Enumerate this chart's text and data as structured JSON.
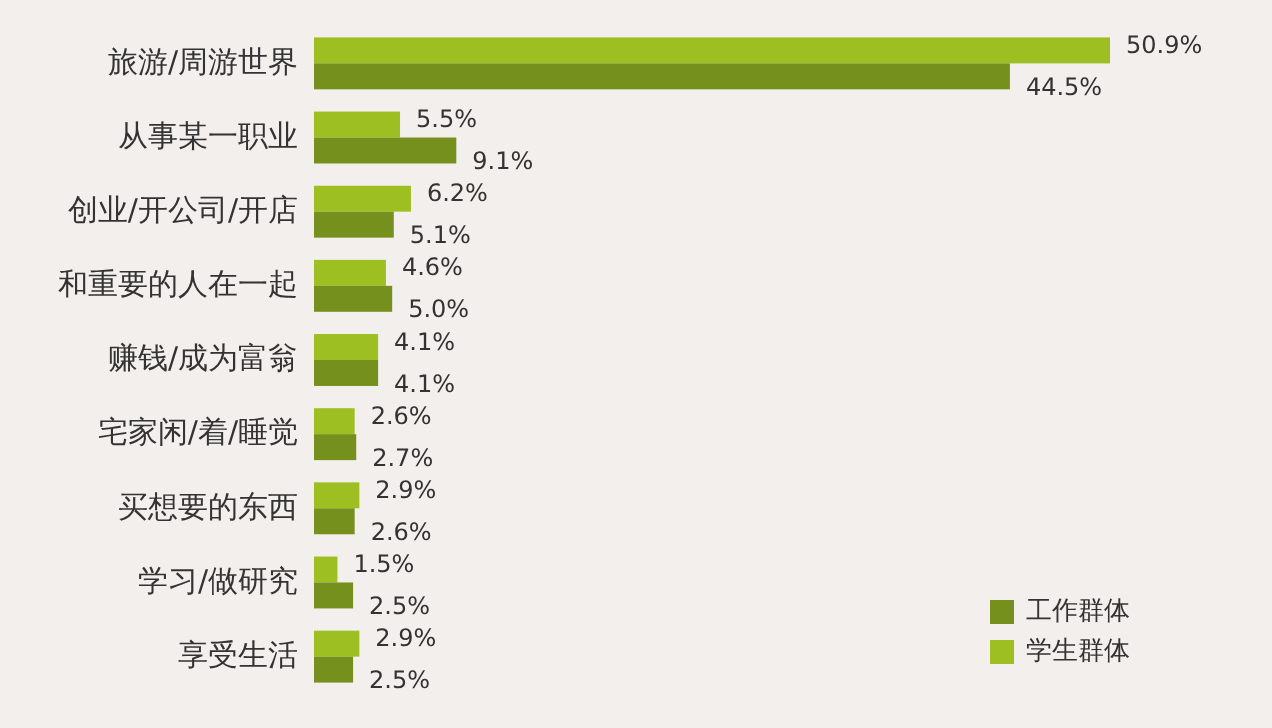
{
  "chart_data": {
    "type": "bar",
    "orientation": "horizontal",
    "legend": "bottom right",
    "categories": [
      "旅游/周游世界",
      "从事某一职业",
      "创业/开公司/开店",
      "和重要的人在一起",
      "赚钱/成为富翁",
      "宅家闲/着/睡觉",
      "买想要的东西",
      "学习/做研究",
      "享受生活"
    ],
    "series": [
      {
        "name": "学生群体",
        "color": "#9dbf22",
        "values": [
          50.9,
          5.5,
          6.2,
          4.6,
          4.1,
          2.6,
          2.9,
          1.5,
          2.9
        ],
        "value_labels": [
          "50.9%",
          "5.5%",
          "6.2%",
          "4.6%",
          "4.1%",
          "2.6%",
          "2.9%",
          "1.5%",
          "2.9%"
        ]
      },
      {
        "name": "工作群体",
        "color": "#76901e",
        "values": [
          44.5,
          9.1,
          5.1,
          5.0,
          4.1,
          2.7,
          2.6,
          2.5,
          2.5
        ],
        "value_labels": [
          "44.5%",
          "9.1%",
          "5.1%",
          "5.0%",
          "4.1%",
          "2.7%",
          "2.6%",
          "2.5%",
          "2.5%"
        ]
      }
    ]
  }
}
